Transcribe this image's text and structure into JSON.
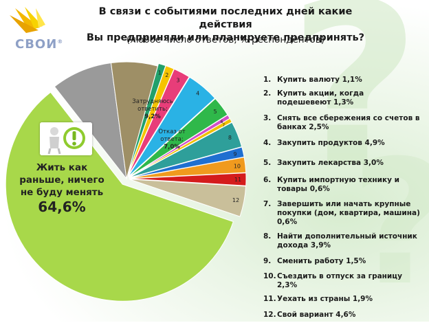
{
  "header": {
    "title_line1": "В связи с событиями последних дней какие действия",
    "title_line2": "Вы предприняли или планируете предпринять?",
    "subtitle": "(любое число ответов, % респондентов)"
  },
  "logo": {
    "text": "СВОИ",
    "mark": "®"
  },
  "colors": {
    "background": "#ffffff",
    "pie_main": "#a8d84a",
    "hard_to_answer": "#9a9a9a",
    "refusal": "#9e8f66"
  },
  "chart_data": {
    "type": "pie",
    "title": "В связи с событиями последних дней какие действия Вы предприняли или планируете предпринять?",
    "subtitle": "(любое число ответов, % респондентов)",
    "unit": "%",
    "slices": [
      {
        "key": "main",
        "label": "Жить как раньше, ничего не буду менять",
        "value": 64.6,
        "value_label": "64,6%",
        "color": "#a8d84a"
      },
      {
        "key": "hard",
        "label": "Затрудняюсь ответить;",
        "value": 9.2,
        "value_label": "9,2%",
        "color": "#9a9a9a"
      },
      {
        "key": "refuse",
        "label": "Отказ от ответа;",
        "value": 7.0,
        "value_label": "7,0%",
        "color": "#9e8f66"
      },
      {
        "key": "1",
        "num": "1",
        "value": 1.1,
        "color": "#22a06b"
      },
      {
        "key": "2",
        "num": "2",
        "value": 1.3,
        "color": "#f5c400"
      },
      {
        "key": "3",
        "num": "3",
        "value": 2.5,
        "color": "#e83d79"
      },
      {
        "key": "4",
        "num": "4",
        "value": 4.9,
        "color": "#2ab2e5"
      },
      {
        "key": "5",
        "num": "5",
        "value": 3.0,
        "color": "#2fb84a"
      },
      {
        "key": "6",
        "num": "6",
        "value": 0.6,
        "color": "#d24fc8"
      },
      {
        "key": "7",
        "num": "7",
        "value": 0.6,
        "color": "#f0c000"
      },
      {
        "key": "8",
        "num": "8",
        "value": 3.9,
        "color": "#2e9f9a"
      },
      {
        "key": "9",
        "num": "9",
        "value": 1.5,
        "color": "#1f6fd0"
      },
      {
        "key": "10",
        "num": "10",
        "value": 2.3,
        "color": "#f09a1e"
      },
      {
        "key": "11",
        "num": "11",
        "value": 1.9,
        "color": "#d41c1c"
      },
      {
        "key": "12",
        "num": "12",
        "value": 4.6,
        "color": "#c9bf9a"
      }
    ],
    "legend": [
      {
        "num": "1.",
        "text": "Купить валюту 1,1%"
      },
      {
        "num": "2.",
        "text": "Купить акции, когда подешевеют 1,3%"
      },
      {
        "num": "3.",
        "text": "Снять все сбережения со счетов в банках 2,5%"
      },
      {
        "num": "4.",
        "text": "Закупить продуктов 4,9%"
      },
      {
        "num": "5.",
        "text": "Закупить лекарства 3,0%"
      },
      {
        "num": "6.",
        "text": "Купить импортную технику и товары 0,6%"
      },
      {
        "num": "7.",
        "text": "Завершить или начать крупные покупки (дом, квартира, машина) 0,6%"
      },
      {
        "num": "8.",
        "text": "Найти дополнительный источник дохода 3,9%"
      },
      {
        "num": "9.",
        "text": "Сменить работу 1,5%"
      },
      {
        "num": "10.",
        "text": "Съездить в отпуск за границу 2,3%"
      },
      {
        "num": "11.",
        "text": "Уехать из страны 1,9%"
      },
      {
        "num": "12.",
        "text": "Свой вариант 4,6%"
      }
    ],
    "legend_placement": "right"
  },
  "icons": {
    "badge": "thinking-person-exclamation-icon",
    "background": "question-mark-icon"
  }
}
